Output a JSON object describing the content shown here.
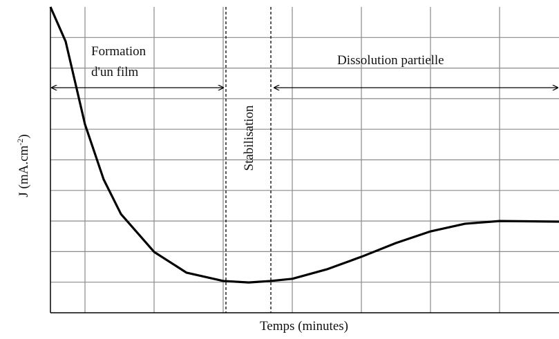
{
  "chart_data": {
    "type": "line",
    "xlabel": "Temps (minutes)",
    "ylabel": [
      "J (mA.cm",
      "-2",
      ")"
    ],
    "x": [
      0,
      22,
      50,
      77,
      102,
      150,
      197,
      250,
      287,
      319,
      350,
      400,
      450,
      500,
      550,
      600,
      650,
      736
    ],
    "series": [
      {
        "color": "#000000",
        "values": [
          10,
          8.87,
          6.16,
          4.36,
          3.23,
          1.99,
          1.31,
          1.04,
          0.99,
          1.04,
          1.11,
          1.42,
          1.83,
          2.28,
          2.66,
          2.91,
          3.0,
          2.98
        ]
      }
    ],
    "xlim": [
      0,
      736
    ],
    "ylim": [
      0,
      10
    ],
    "xticks": [
      50,
      150,
      250,
      350,
      450,
      550,
      650
    ],
    "yticks": [
      1,
      2,
      3,
      4,
      5,
      6,
      7,
      8,
      9
    ],
    "grid": true,
    "vlines": [
      254,
      319
    ],
    "annotations": {
      "formation": [
        "Formation",
        "d'un film"
      ],
      "stabilisation": "Stabilisation",
      "dissolution": "Dissolution partielle"
    }
  }
}
